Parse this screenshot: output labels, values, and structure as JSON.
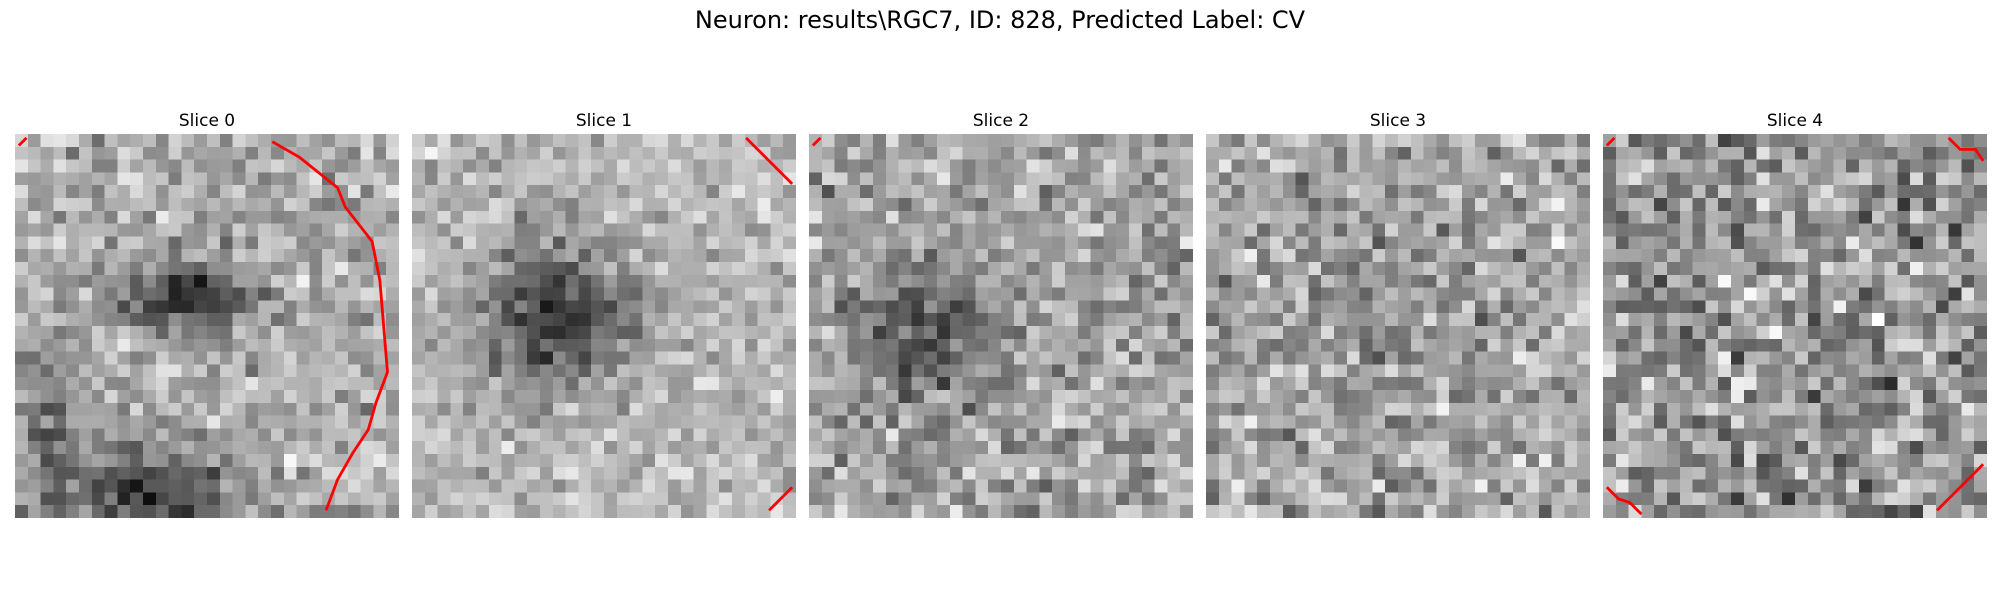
{
  "figure": {
    "title": "Neuron: results\\RGC7, ID: 828, Predicted Label: CV"
  },
  "slices": [
    {
      "label": "Slice 0",
      "seed": 11,
      "base": 175,
      "noise": 55,
      "blobs": [
        [
          0.43,
          0.42,
          0.12,
          0.07,
          -110
        ],
        [
          0.35,
          0.95,
          0.16,
          0.1,
          -110
        ],
        [
          0.08,
          0.75,
          0.06,
          0.14,
          -60
        ]
      ],
      "contours": [
        [
          [
            0.67,
            0.02
          ],
          [
            0.74,
            0.06
          ],
          [
            0.84,
            0.14
          ],
          [
            0.86,
            0.19
          ],
          [
            0.93,
            0.28
          ],
          [
            0.95,
            0.38
          ],
          [
            0.97,
            0.62
          ],
          [
            0.94,
            0.7
          ],
          [
            0.92,
            0.77
          ],
          [
            0.88,
            0.83
          ],
          [
            0.84,
            0.9
          ],
          [
            0.81,
            0.98
          ]
        ],
        [
          [
            0.01,
            0.03
          ],
          [
            0.03,
            0.01
          ]
        ]
      ]
    },
    {
      "label": "Slice 1",
      "seed": 23,
      "base": 185,
      "noise": 45,
      "blobs": [
        [
          0.38,
          0.48,
          0.15,
          0.13,
          -125
        ]
      ],
      "contours": [
        [
          [
            0.87,
            0.01
          ],
          [
            0.99,
            0.13
          ]
        ],
        [
          [
            0.93,
            0.98
          ],
          [
            0.99,
            0.92
          ]
        ]
      ]
    },
    {
      "label": "Slice 2",
      "seed": 37,
      "base": 165,
      "noise": 60,
      "blobs": [
        [
          0.3,
          0.52,
          0.12,
          0.12,
          -90
        ]
      ],
      "contours": [
        [
          [
            0.01,
            0.03
          ],
          [
            0.03,
            0.01
          ]
        ]
      ]
    },
    {
      "label": "Slice 3",
      "seed": 41,
      "base": 170,
      "noise": 65,
      "blobs": [
        [
          0.45,
          0.5,
          0.25,
          0.25,
          -20
        ]
      ],
      "contours": []
    },
    {
      "label": "Slice 4",
      "seed": 53,
      "base": 150,
      "noise": 80,
      "blobs": [],
      "contours": [
        [
          [
            0.01,
            0.03
          ],
          [
            0.03,
            0.01
          ]
        ],
        [
          [
            0.9,
            0.01
          ],
          [
            0.93,
            0.04
          ],
          [
            0.97,
            0.04
          ],
          [
            0.99,
            0.07
          ]
        ],
        [
          [
            0.01,
            0.92
          ],
          [
            0.04,
            0.95
          ],
          [
            0.07,
            0.96
          ],
          [
            0.1,
            0.99
          ]
        ],
        [
          [
            0.87,
            0.98
          ],
          [
            0.99,
            0.86
          ]
        ]
      ]
    }
  ],
  "colors": {
    "contour": "#ff0000"
  }
}
